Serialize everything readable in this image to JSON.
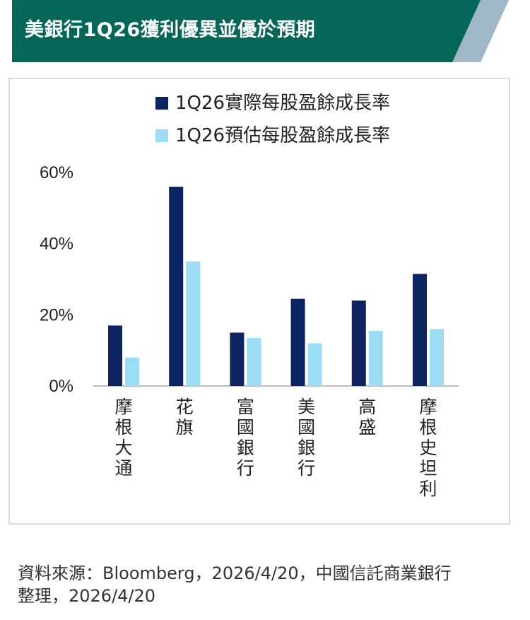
{
  "header": {
    "title": "美銀行1Q26獲利優異並優於預期",
    "bg_color": "#046656",
    "stripe_color": "#9fb7c7"
  },
  "chart_data": {
    "type": "bar",
    "categories": [
      "摩根大通",
      "花旗",
      "富國銀行",
      "美國銀行",
      "高盛",
      "摩根史坦利"
    ],
    "series": [
      {
        "name": "1Q26實際每股盈餘成長率",
        "values": [
          17,
          56,
          15,
          24.5,
          24,
          31.5
        ],
        "color": "#0c2461"
      },
      {
        "name": "1Q26預估每股盈餘成長率",
        "values": [
          8,
          35,
          13.5,
          12,
          15.5,
          16
        ],
        "color": "#9ddcf5"
      }
    ],
    "y_ticks": [
      "0%",
      "20%",
      "40%",
      "60%"
    ],
    "y_tick_values": [
      0,
      20,
      40,
      60
    ],
    "ylim": [
      0,
      60
    ],
    "legend_position": "top",
    "grid": false
  },
  "source": {
    "line1": "資料來源：Bloomberg，2026/4/20，中國信託商業銀行",
    "line2": "整理，2026/4/20"
  }
}
